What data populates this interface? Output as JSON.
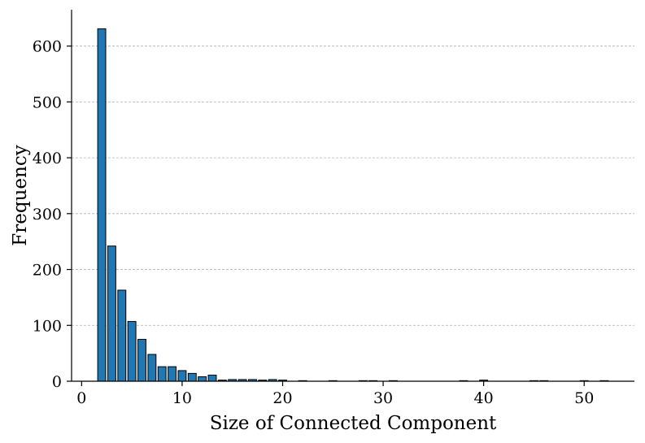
{
  "chart_data": {
    "type": "bar",
    "title": "",
    "xlabel": "Size of Connected Component",
    "ylabel": "Frequency",
    "xlim": [
      -1,
      55
    ],
    "ylim": [
      0,
      665
    ],
    "x_ticks": [
      0,
      10,
      20,
      30,
      40,
      50
    ],
    "y_ticks": [
      0,
      100,
      200,
      300,
      400,
      500,
      600
    ],
    "grid": {
      "y": true,
      "x": false,
      "style": "dashed"
    },
    "bar_color": "#1f77b4",
    "bar_edge_color": "#000000",
    "x": [
      2,
      3,
      4,
      5,
      6,
      7,
      8,
      9,
      10,
      11,
      12,
      13,
      14,
      15,
      16,
      17,
      18,
      19,
      20,
      22,
      25,
      28,
      29,
      31,
      38,
      40,
      45,
      46,
      50,
      52
    ],
    "values": [
      631,
      242,
      163,
      107,
      75,
      48,
      26,
      26,
      19,
      14,
      8,
      11,
      2,
      3,
      3,
      3,
      2,
      3,
      2,
      1,
      1,
      1,
      1,
      1,
      1,
      2,
      1,
      1,
      1,
      1
    ]
  }
}
